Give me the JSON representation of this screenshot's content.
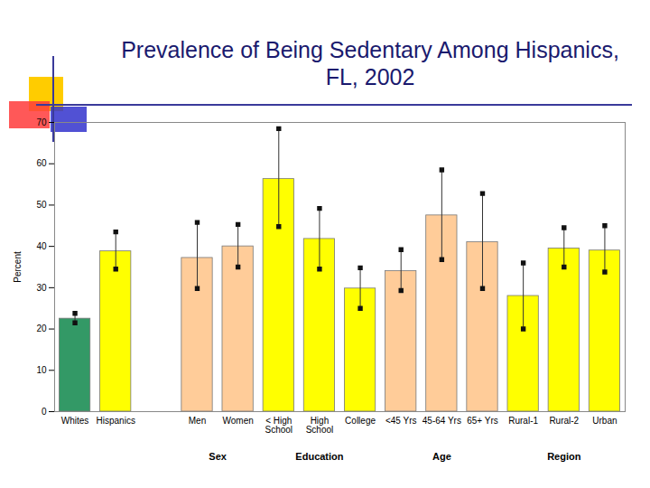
{
  "chart_data": {
    "type": "bar",
    "title": "Prevalence of Being Sedentary Among Hispanics, FL, 2002",
    "y_label": "Percent",
    "categories": [
      "Whites",
      "Hispanics",
      null,
      "Men",
      "Women",
      "< High School",
      "High School",
      "College",
      "<45 Yrs",
      "45-64 Yrs",
      "65+ Yrs",
      "Rural-1",
      "Rural-2",
      "Urban"
    ],
    "values": [
      22.5,
      38.8,
      null,
      37.2,
      40,
      56.3,
      41.8,
      29.8,
      34,
      47.5,
      41,
      28,
      39.5,
      39
    ],
    "error_low": [
      21.5,
      34.5,
      null,
      29.8,
      35,
      44.8,
      34.5,
      25,
      29.3,
      36.8,
      29.8,
      20,
      35,
      33.8
    ],
    "error_high": [
      23.8,
      43.5,
      null,
      45.8,
      45.3,
      68.5,
      49.2,
      34.8,
      39.2,
      58.5,
      52.8,
      36,
      44.5,
      45
    ],
    "colors": [
      "#339966",
      "#ffff00",
      null,
      "#ffcc99",
      "#ffcc99",
      "#ffff00",
      "#ffff00",
      "#ffff00",
      "#ffcc99",
      "#ffcc99",
      "#ffcc99",
      "#ffff00",
      "#ffff00",
      "#ffff00"
    ],
    "groups": [
      {
        "label": "Sex",
        "members": [
          "Men",
          "Women"
        ]
      },
      {
        "label": "Education",
        "members": [
          "< High School",
          "High School",
          "College"
        ]
      },
      {
        "label": "Age",
        "members": [
          "<45 Yrs",
          "45-64 Yrs",
          "65+ Yrs"
        ]
      },
      {
        "label": "Region",
        "members": [
          "Rural-1",
          "Rural-2",
          "Urban"
        ]
      }
    ],
    "ylim": [
      0,
      70
    ],
    "yticks": [
      0,
      10,
      20,
      30,
      40,
      50,
      60,
      70
    ],
    "grid": false
  }
}
